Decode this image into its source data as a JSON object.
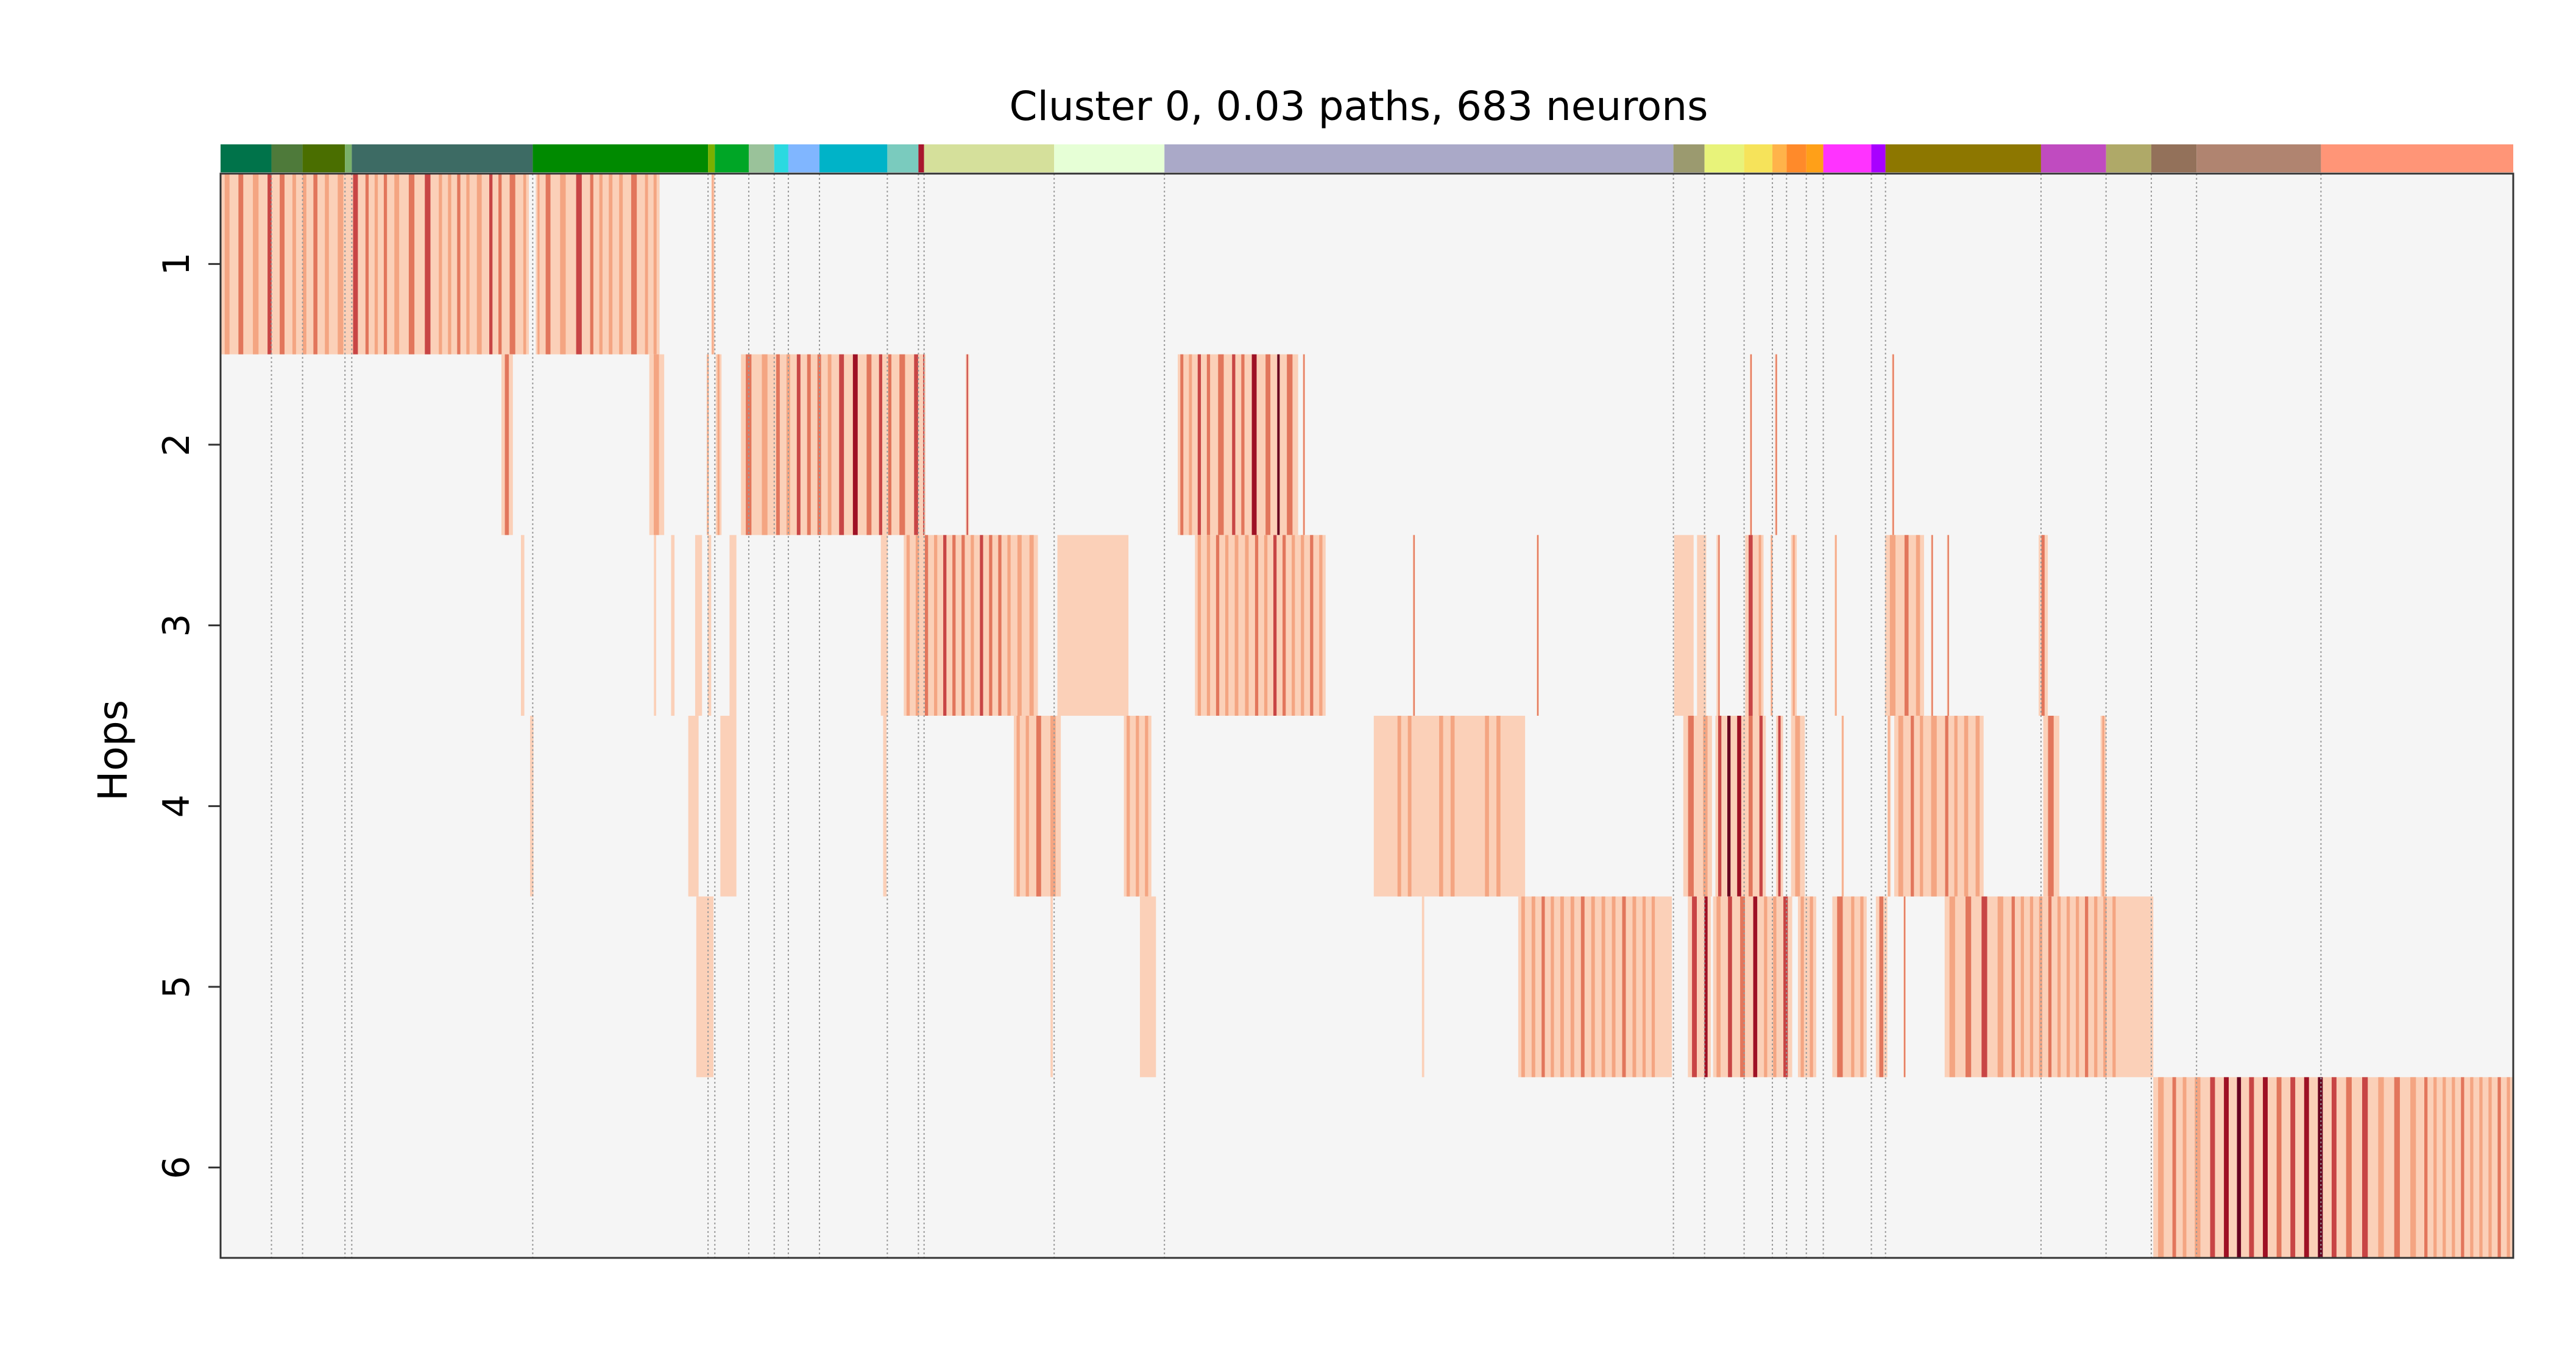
{
  "chart_data": {
    "type": "heatmap",
    "title": "Cluster 0, 0.03 paths, 683 neurons",
    "ylabel": "Hops",
    "xlabel": "",
    "rows": [
      "1",
      "2",
      "3",
      "4",
      "5",
      "6"
    ],
    "colorscale": [
      "#f5f5f5",
      "#fbd0b8",
      "#f4a582",
      "#e2765c",
      "#c84545",
      "#9e1125",
      "#67001f"
    ],
    "background_color": "#f5f5f5",
    "group_colors": [
      "#00734a",
      "#4e7a3a",
      "#4a6e00",
      "#7ab06a",
      "#3d6b64",
      "#008a00",
      "#7ab000",
      "#00a626",
      "#9ac29a",
      "#2bd9e0",
      "#80b6ff",
      "#00b3c8",
      "#7acbbe",
      "#a8172d",
      "#d5e09b",
      "#e6ffd6",
      "#aaa9c8",
      "#9b9a6f",
      "#e8f37a",
      "#f6e35a",
      "#ffb34a",
      "#ff8a2a",
      "#ffa018",
      "#ff33ff",
      "#a800ff",
      "#8d7700",
      "#c04bc0",
      "#afa968",
      "#93715a",
      "#b08470",
      "#ff9577"
    ],
    "group_widths": [
      0.9,
      0.55,
      0.75,
      0.12,
      3.2,
      3.1,
      0.12,
      0.6,
      0.45,
      0.25,
      0.55,
      1.2,
      0.55,
      0.1,
      2.3,
      1.95,
      9.0,
      0.55,
      0.7,
      0.5,
      0.25,
      0.35,
      0.3,
      0.85,
      0.25,
      2.75,
      1.15,
      0.8,
      0.8,
      2.2,
      3.4
    ],
    "row_segments": [
      [
        [
          0.0,
          13.45
        ],
        [
          13.75,
          19.15
        ],
        [
          21.4,
          21.55
        ]
      ],
      [
        [
          12.25,
          12.75
        ],
        [
          18.7,
          19.35
        ],
        [
          21.2,
          21.3
        ],
        [
          21.6,
          21.85
        ],
        [
          22.7,
          30.6
        ],
        [
          30.6,
          30.75
        ],
        [
          32.5,
          32.65
        ],
        [
          41.75,
          47.0
        ],
        [
          47.2,
          47.3
        ],
        [
          66.7,
          66.8
        ],
        [
          67.8,
          67.9
        ],
        [
          72.9,
          73.0
        ]
      ],
      [
        [
          13.1,
          13.25
        ],
        [
          18.9,
          19.0
        ],
        [
          19.65,
          19.8
        ],
        [
          20.7,
          21.0
        ],
        [
          21.25,
          21.4
        ],
        [
          22.2,
          22.5
        ],
        [
          28.8,
          29.1
        ],
        [
          29.8,
          35.65
        ],
        [
          36.5,
          39.6
        ],
        [
          42.5,
          48.2
        ],
        [
          52.0,
          52.1
        ],
        [
          57.4,
          57.5
        ],
        [
          63.4,
          64.25
        ],
        [
          64.4,
          64.8
        ],
        [
          65.25,
          65.4
        ],
        [
          66.5,
          67.3
        ],
        [
          67.6,
          67.7
        ],
        [
          68.5,
          68.75
        ],
        [
          70.4,
          70.5
        ],
        [
          72.6,
          74.3
        ],
        [
          74.6,
          74.7
        ],
        [
          75.3,
          75.4
        ],
        [
          79.3,
          79.7
        ]
      ],
      [
        [
          13.5,
          13.65
        ],
        [
          20.4,
          20.85
        ],
        [
          21.8,
          22.5
        ],
        [
          28.9,
          29.05
        ],
        [
          34.6,
          36.65
        ],
        [
          39.4,
          40.6
        ],
        [
          50.3,
          56.9
        ],
        [
          63.8,
          65.05
        ],
        [
          65.2,
          67.4
        ],
        [
          67.85,
          68.15
        ],
        [
          68.5,
          69.1
        ],
        [
          70.7,
          70.8
        ],
        [
          72.7,
          72.85
        ],
        [
          73.0,
          76.9
        ],
        [
          79.5,
          80.2
        ],
        [
          82.0,
          82.25
        ]
      ],
      [
        [
          20.75,
          21.5
        ],
        [
          36.2,
          36.3
        ],
        [
          40.1,
          40.8
        ],
        [
          52.4,
          52.5
        ],
        [
          56.6,
          63.3
        ],
        [
          64.0,
          65.0
        ],
        [
          65.1,
          68.55
        ],
        [
          68.8,
          69.6
        ],
        [
          70.3,
          71.8
        ],
        [
          72.2,
          72.7
        ],
        [
          73.4,
          73.5
        ],
        [
          75.2,
          84.3
        ]
      ],
      [
        [
          84.3,
          100.0
        ]
      ]
    ],
    "row_intensities": [
      [
        [
          0.0,
          2
        ],
        [
          0.6,
          3
        ],
        [
          1.2,
          2
        ],
        [
          1.9,
          4
        ],
        [
          2.4,
          3
        ],
        [
          3.0,
          2
        ],
        [
          3.9,
          3
        ],
        [
          4.9,
          2
        ],
        [
          5.6,
          4
        ],
        [
          6.2,
          3
        ],
        [
          7.4,
          2
        ],
        [
          8.0,
          3
        ],
        [
          8.7,
          4
        ],
        [
          9.4,
          2
        ],
        [
          10.2,
          3
        ],
        [
          11.0,
          2
        ],
        [
          11.6,
          4
        ],
        [
          12.4,
          3
        ],
        [
          13.1,
          2
        ],
        [
          14.0,
          3
        ],
        [
          14.6,
          2
        ],
        [
          15.3,
          4
        ],
        [
          16.0,
          3
        ],
        [
          16.8,
          2
        ],
        [
          17.7,
          3
        ],
        [
          18.4,
          2
        ]
      ],
      [
        [
          12.25,
          3
        ],
        [
          18.7,
          2
        ],
        [
          22.7,
          3
        ],
        [
          23.4,
          2
        ],
        [
          24.1,
          3
        ],
        [
          25.0,
          4
        ],
        [
          25.9,
          3
        ],
        [
          26.8,
          4
        ],
        [
          27.4,
          5
        ],
        [
          28.0,
          3
        ],
        [
          28.6,
          4
        ],
        [
          29.4,
          3
        ],
        [
          30.1,
          4
        ],
        [
          41.75,
          3
        ],
        [
          42.5,
          4
        ],
        [
          43.3,
          3
        ],
        [
          44.0,
          4
        ],
        [
          44.8,
          5
        ],
        [
          45.4,
          3
        ],
        [
          46.0,
          6
        ],
        [
          46.3,
          3
        ]
      ],
      [
        [
          29.8,
          2
        ],
        [
          30.6,
          3
        ],
        [
          31.4,
          4
        ],
        [
          32.2,
          3
        ],
        [
          33.0,
          4
        ],
        [
          33.8,
          3
        ],
        [
          34.6,
          2
        ],
        [
          36.5,
          1
        ],
        [
          42.5,
          2
        ],
        [
          43.3,
          3
        ],
        [
          44.1,
          2
        ],
        [
          45.0,
          3
        ],
        [
          45.8,
          4
        ],
        [
          46.6,
          2
        ],
        [
          47.4,
          3
        ],
        [
          63.4,
          1
        ],
        [
          65.3,
          3
        ],
        [
          66.5,
          4
        ],
        [
          67.0,
          2
        ],
        [
          72.6,
          2
        ],
        [
          73.3,
          3
        ],
        [
          79.3,
          3
        ]
      ],
      [
        [
          34.6,
          2
        ],
        [
          35.4,
          3
        ],
        [
          36.0,
          2
        ],
        [
          39.4,
          2
        ],
        [
          50.3,
          1
        ],
        [
          51.2,
          2
        ],
        [
          52.1,
          1
        ],
        [
          53.0,
          2
        ],
        [
          54.0,
          1
        ],
        [
          55.0,
          2
        ],
        [
          56.0,
          1
        ],
        [
          63.8,
          3
        ],
        [
          64.5,
          2
        ],
        [
          65.2,
          4
        ],
        [
          65.6,
          6
        ],
        [
          66.0,
          5
        ],
        [
          66.5,
          3
        ],
        [
          67.0,
          4
        ],
        [
          68.5,
          2
        ],
        [
          73.0,
          2
        ],
        [
          73.6,
          3
        ],
        [
          74.4,
          2
        ],
        [
          75.1,
          3
        ],
        [
          75.9,
          2
        ],
        [
          79.5,
          3
        ],
        [
          82.0,
          2
        ]
      ],
      [
        [
          56.6,
          2
        ],
        [
          57.5,
          3
        ],
        [
          58.3,
          2
        ],
        [
          59.2,
          3
        ],
        [
          60.1,
          2
        ],
        [
          61.0,
          3
        ],
        [
          61.9,
          2
        ],
        [
          62.7,
          1
        ],
        [
          64.0,
          4
        ],
        [
          64.6,
          5
        ],
        [
          65.1,
          2
        ],
        [
          65.6,
          4
        ],
        [
          66.1,
          3
        ],
        [
          66.7,
          5
        ],
        [
          67.2,
          2
        ],
        [
          68.0,
          4
        ],
        [
          68.8,
          2
        ],
        [
          70.3,
          3
        ],
        [
          71.0,
          2
        ],
        [
          72.2,
          3
        ],
        [
          75.2,
          2
        ],
        [
          75.9,
          3
        ],
        [
          76.6,
          4
        ],
        [
          77.3,
          2
        ],
        [
          78.0,
          3
        ],
        [
          78.8,
          2
        ],
        [
          79.6,
          3
        ],
        [
          80.4,
          2
        ],
        [
          81.2,
          3
        ],
        [
          82.0,
          2
        ],
        [
          82.8,
          1
        ]
      ],
      [
        [
          84.3,
          2
        ],
        [
          85.0,
          3
        ],
        [
          85.9,
          2
        ],
        [
          86.6,
          4
        ],
        [
          87.2,
          5
        ],
        [
          87.8,
          6
        ],
        [
          88.3,
          4
        ],
        [
          88.9,
          5
        ],
        [
          89.5,
          3
        ],
        [
          90.1,
          4
        ],
        [
          90.7,
          5
        ],
        [
          91.3,
          6
        ],
        [
          91.9,
          4
        ],
        [
          92.5,
          3
        ],
        [
          93.2,
          4
        ],
        [
          93.9,
          2
        ],
        [
          94.6,
          3
        ],
        [
          95.3,
          2
        ],
        [
          96.0,
          3
        ],
        [
          96.8,
          2
        ],
        [
          97.6,
          3
        ],
        [
          98.4,
          2
        ],
        [
          99.2,
          3
        ]
      ]
    ],
    "grid": true,
    "legend": "none"
  }
}
